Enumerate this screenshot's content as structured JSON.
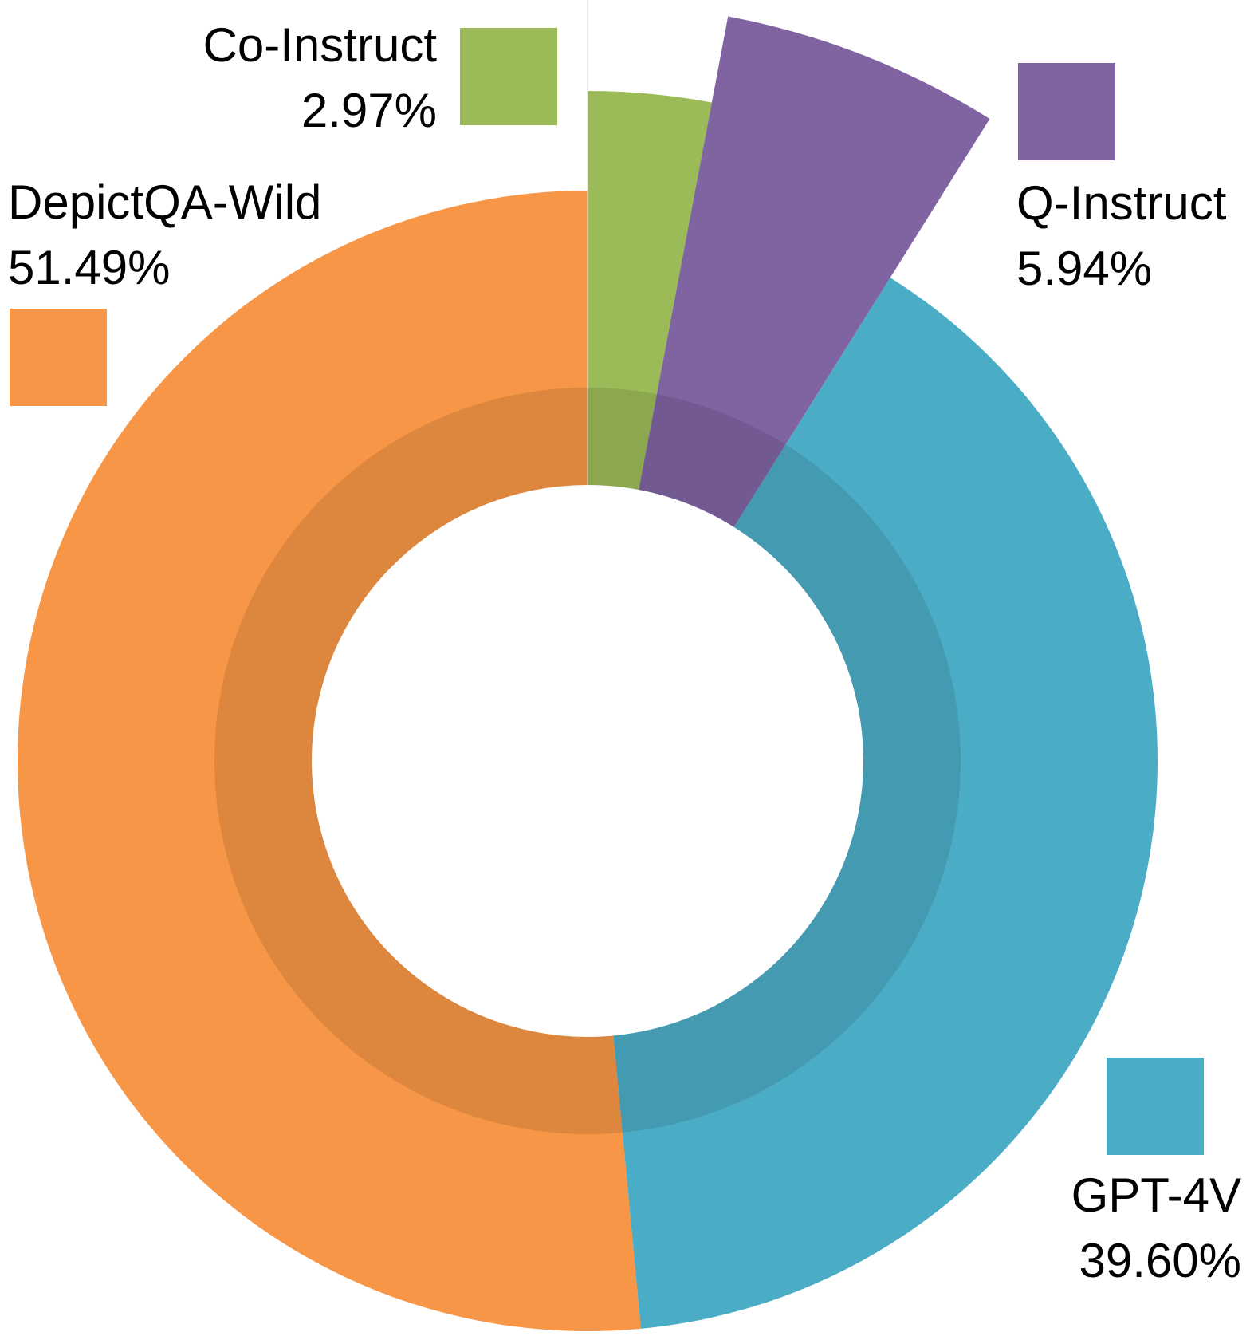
{
  "chart_data": {
    "type": "pie",
    "variant": "donut with radially extended slices",
    "title": "",
    "slices": [
      {
        "name": "Co-Instruct",
        "value": 2.97,
        "label": "2.97%",
        "color": "#9BBB59"
      },
      {
        "name": "Q-Instruct",
        "value": 5.94,
        "label": "5.94%",
        "color": "#8064A2"
      },
      {
        "name": "GPT-4V",
        "value": 39.6,
        "label": "39.60%",
        "color": "#4BACC6"
      },
      {
        "name": "DepictQA-Wild",
        "value": 51.49,
        "label": "51.49%",
        "color": "#F79646"
      }
    ],
    "start_angle": "12 o'clock",
    "direction": "clockwise",
    "legend": "each label placed next to its slice with a color square"
  }
}
